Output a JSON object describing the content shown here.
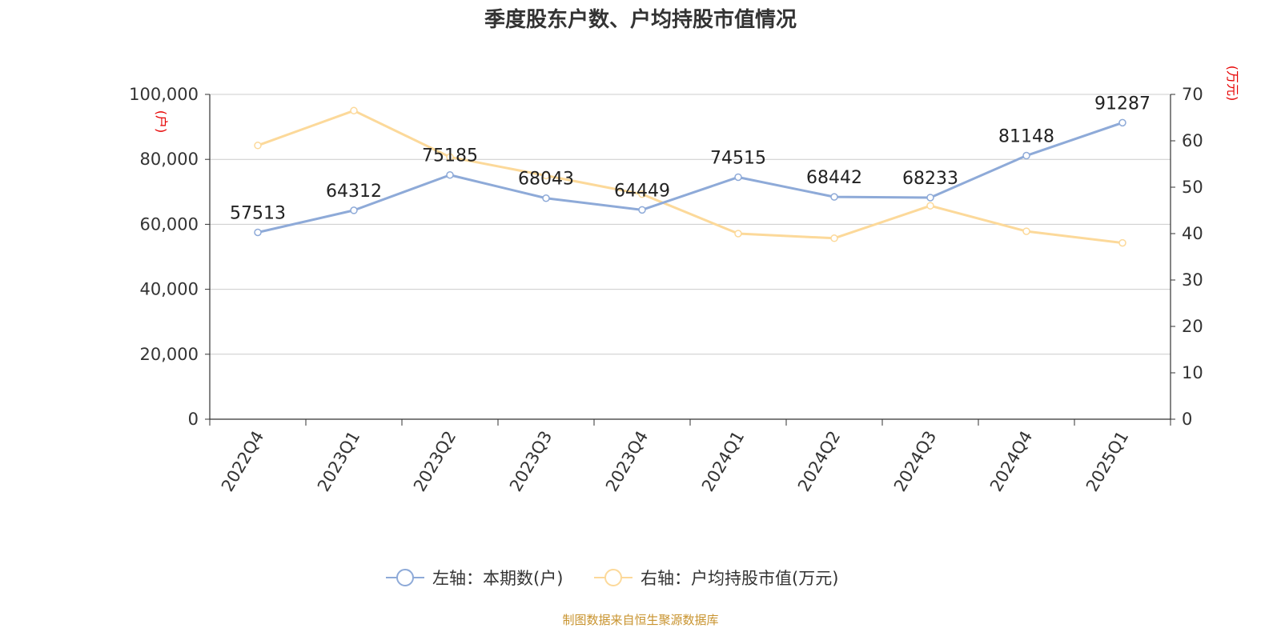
{
  "title": "季度股东户数、户均持股市值情况",
  "source": "制图数据来自恒生聚源数据库",
  "colors": {
    "left_series": "#8eaad8",
    "right_series": "#fcd99a",
    "axis_unit": "#e60000",
    "grid": "#cccccc"
  },
  "chart_data": {
    "type": "line",
    "title": "季度股东户数、户均持股市值情况",
    "categories": [
      "2022Q4",
      "2023Q1",
      "2023Q2",
      "2023Q3",
      "2023Q4",
      "2024Q1",
      "2024Q2",
      "2024Q3",
      "2024Q4",
      "2025Q1"
    ],
    "left_axis": {
      "unit": "(户)",
      "ylim": [
        0,
        100000
      ],
      "ticks": [
        "0",
        "20,000",
        "40,000",
        "60,000",
        "80,000",
        "100,000"
      ]
    },
    "right_axis": {
      "unit": "(万元)",
      "ylim": [
        0,
        70
      ],
      "ticks": [
        "0",
        "10",
        "20",
        "30",
        "40",
        "50",
        "60",
        "70"
      ]
    },
    "grid": true,
    "legend_position": "bottom",
    "series": [
      {
        "name": "左轴：本期数(户)",
        "axis": "left",
        "values": [
          57513,
          64312,
          75185,
          68043,
          64449,
          74515,
          68442,
          68233,
          81148,
          91287
        ],
        "labels": [
          "57513",
          "64312",
          "75185",
          "68043",
          "64449",
          "74515",
          "68442",
          "68233",
          "81148",
          "91287"
        ]
      },
      {
        "name": "右轴：户均持股市值(万元)",
        "axis": "right",
        "values": [
          59.0,
          66.5,
          56.5,
          52.5,
          48.5,
          40.0,
          39.0,
          46.0,
          40.5,
          38.0
        ]
      }
    ]
  }
}
